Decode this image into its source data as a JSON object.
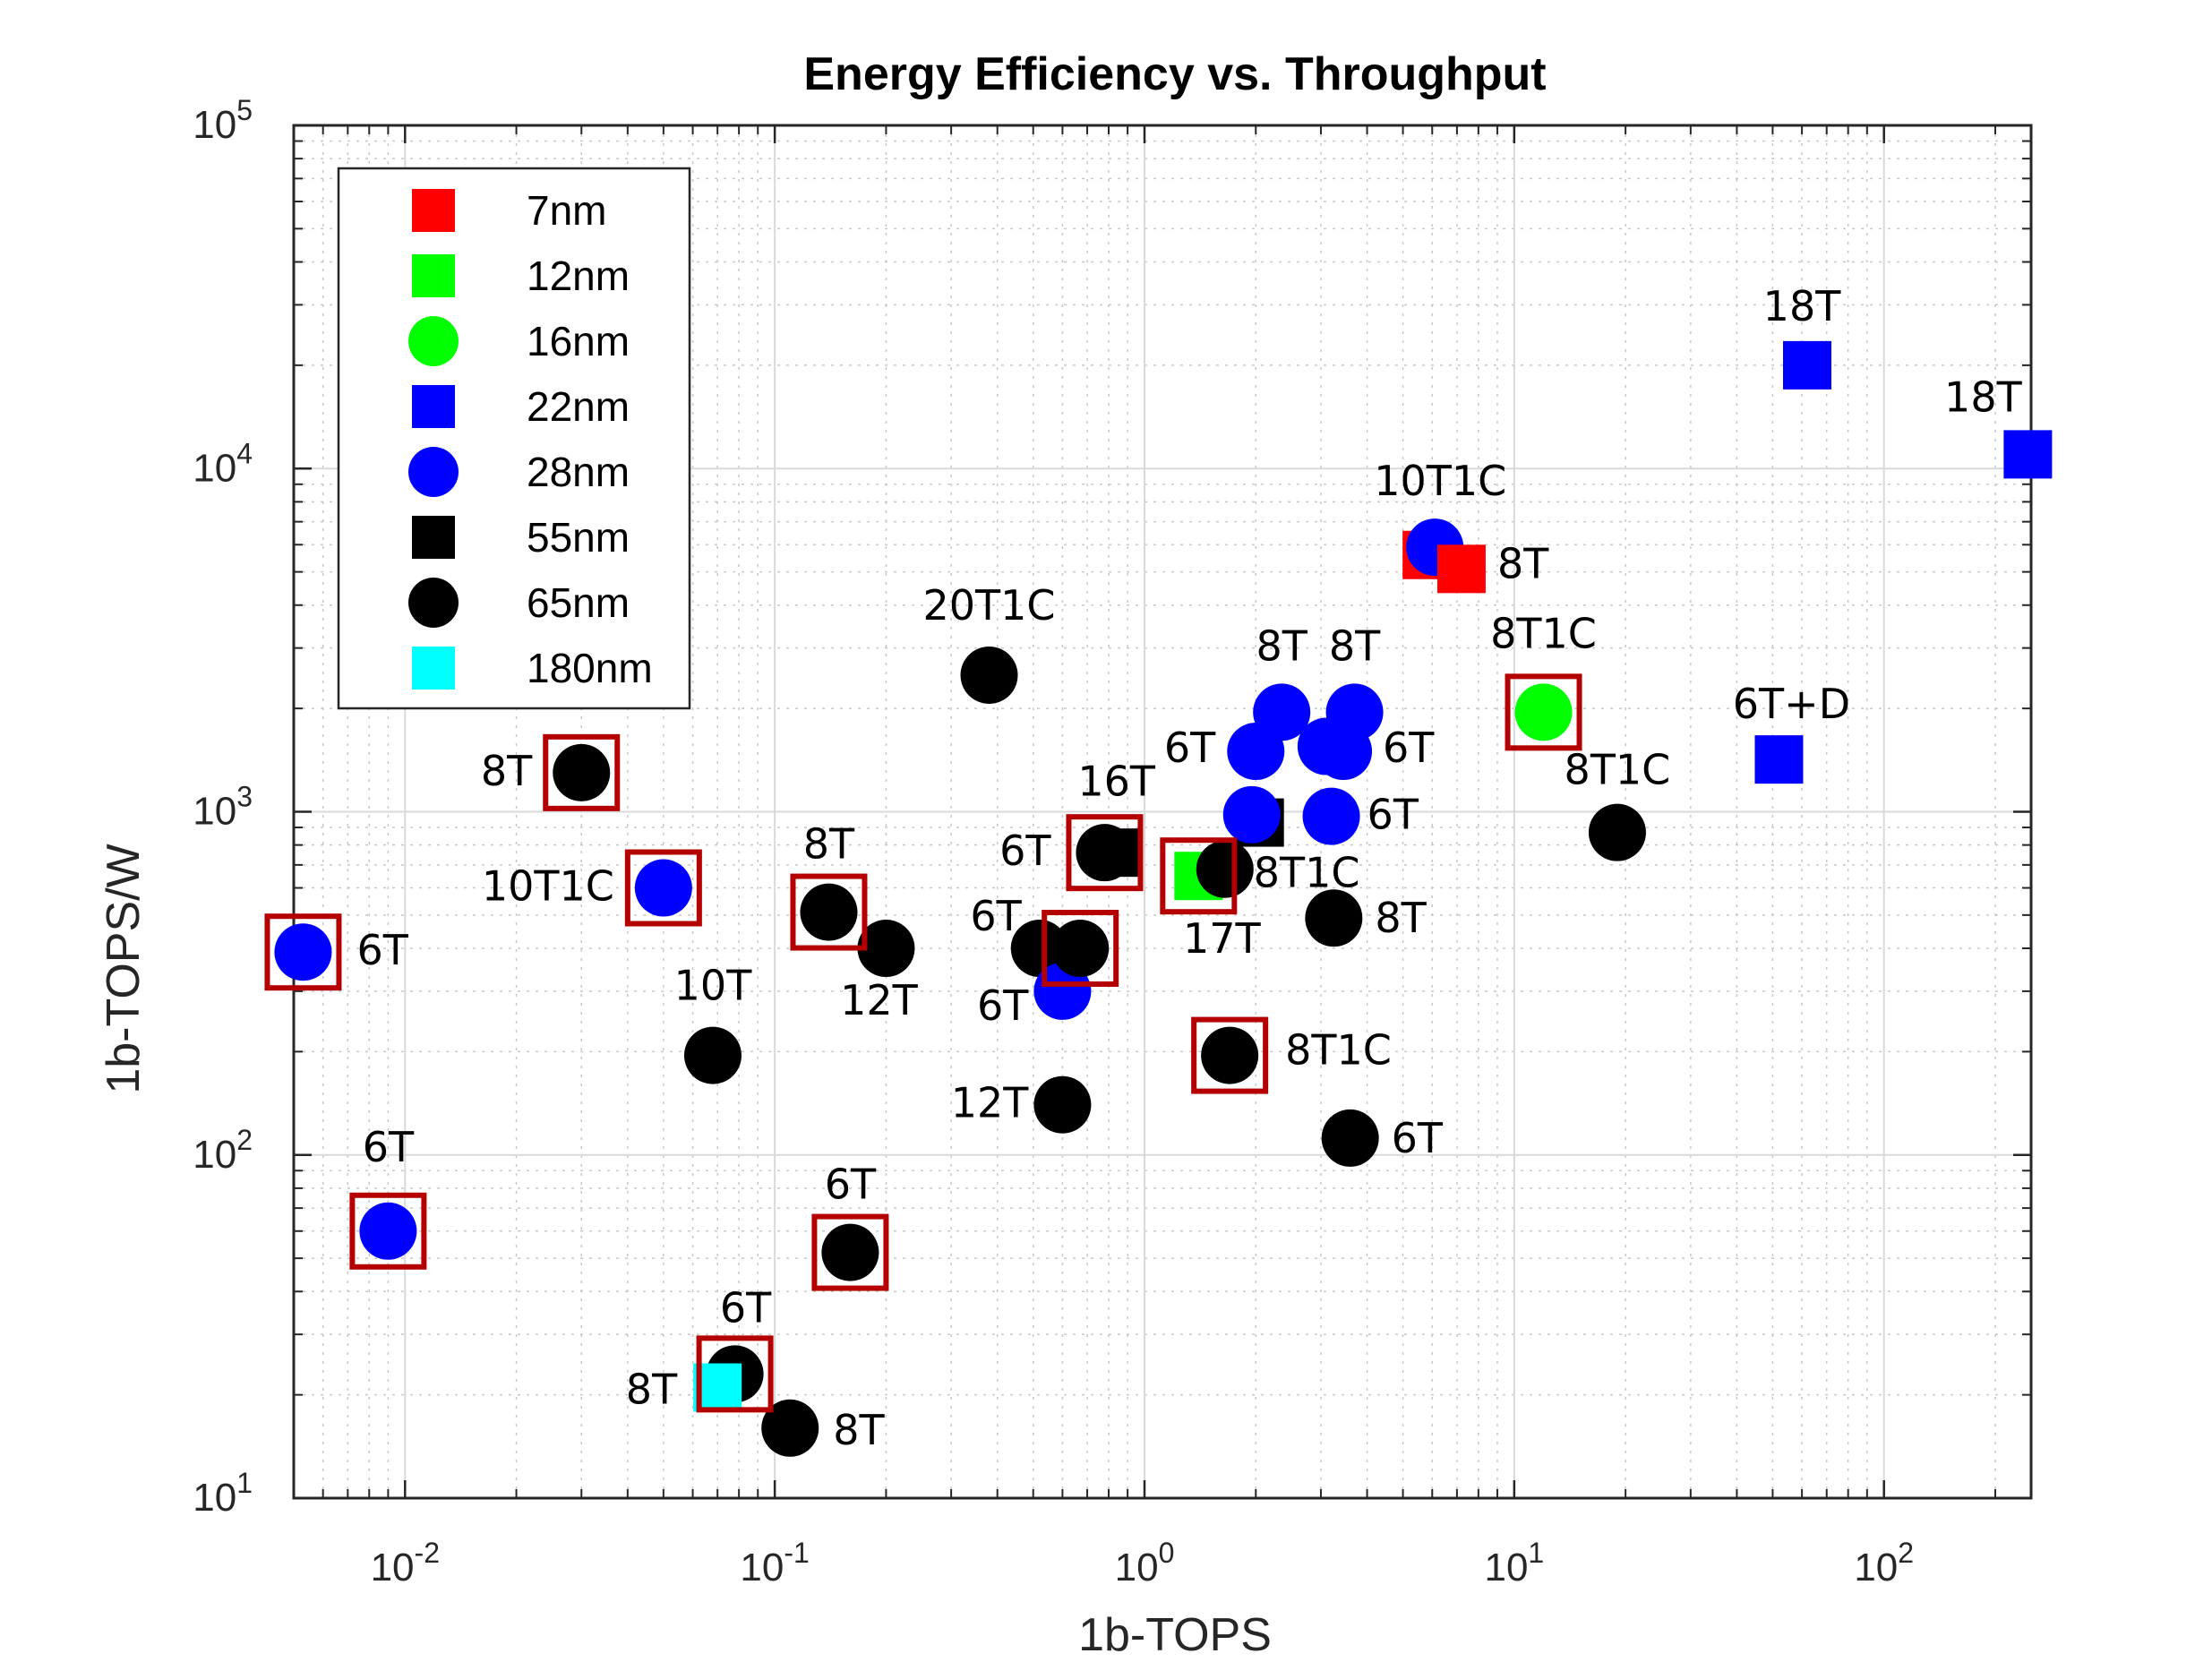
{
  "chart_data": {
    "type": "scatter",
    "title": "Energy Efficiency vs. Throughput",
    "xlabel": "1b-TOPS",
    "ylabel": "1b-TOPS/W",
    "xscale": "log",
    "yscale": "log",
    "xlim": [
      0.005,
      250
    ],
    "ylim": [
      10,
      100000
    ],
    "grid": true,
    "minor_grid": true,
    "legend_position": "top-left",
    "x_ticks": [
      {
        "value": 0.01,
        "base": "10",
        "exp": "-2"
      },
      {
        "value": 0.1,
        "base": "10",
        "exp": "-1"
      },
      {
        "value": 1,
        "base": "10",
        "exp": "0"
      },
      {
        "value": 10,
        "base": "10",
        "exp": "1"
      },
      {
        "value": 100,
        "base": "10",
        "exp": "2"
      }
    ],
    "y_ticks": [
      {
        "value": 10,
        "base": "10",
        "exp": "1"
      },
      {
        "value": 100,
        "base": "10",
        "exp": "2"
      },
      {
        "value": 1000,
        "base": "10",
        "exp": "3"
      },
      {
        "value": 10000,
        "base": "10",
        "exp": "4"
      },
      {
        "value": 100000,
        "base": "10",
        "exp": "5"
      }
    ],
    "legend": [
      {
        "label": "7nm",
        "marker": "square",
        "color": "#ff0000"
      },
      {
        "label": "12nm",
        "marker": "square",
        "color": "#00ff00"
      },
      {
        "label": "16nm",
        "marker": "circle",
        "color": "#00ff00"
      },
      {
        "label": "22nm",
        "marker": "square",
        "color": "#0000ff"
      },
      {
        "label": "28nm",
        "marker": "circle",
        "color": "#0000ff"
      },
      {
        "label": "55nm",
        "marker": "square",
        "color": "#000000"
      },
      {
        "label": "65nm",
        "marker": "circle",
        "color": "#000000"
      },
      {
        "label": "180nm",
        "marker": "square",
        "color": "#00ffff"
      }
    ],
    "highlight_color": "#b40000",
    "points": [
      {
        "x": 0.0053,
        "y": 390,
        "node": "28nm",
        "label": "6T",
        "highlight": true
      },
      {
        "x": 0.009,
        "y": 60,
        "node": "28nm",
        "label": "6T",
        "highlight": true
      },
      {
        "x": 0.03,
        "y": 1300,
        "node": "65nm",
        "label": "8T",
        "highlight": true
      },
      {
        "x": 0.05,
        "y": 600,
        "node": "28nm",
        "label": "10T1C",
        "highlight": true
      },
      {
        "x": 0.068,
        "y": 195,
        "node": "65nm",
        "label": "10T",
        "highlight": false
      },
      {
        "x": 0.078,
        "y": 23,
        "node": "65nm",
        "label": "6T",
        "highlight": true
      },
      {
        "x": 0.07,
        "y": 21,
        "node": "180nm",
        "label": "8T",
        "highlight": false
      },
      {
        "x": 0.11,
        "y": 16,
        "node": "65nm",
        "label": "8T",
        "highlight": false
      },
      {
        "x": 0.14,
        "y": 510,
        "node": "65nm",
        "label": "8T",
        "highlight": true
      },
      {
        "x": 0.16,
        "y": 52,
        "node": "65nm",
        "label": "6T",
        "highlight": true
      },
      {
        "x": 0.2,
        "y": 400,
        "node": "65nm",
        "label": "12T",
        "highlight": false
      },
      {
        "x": 0.38,
        "y": 2500,
        "node": "65nm",
        "label": "20T1C",
        "highlight": false
      },
      {
        "x": 0.52,
        "y": 400,
        "node": "65nm",
        "label": "6T",
        "highlight": false
      },
      {
        "x": 0.6,
        "y": 140,
        "node": "65nm",
        "label": "12T",
        "highlight": false
      },
      {
        "x": 0.6,
        "y": 300,
        "node": "28nm",
        "label": "6T",
        "highlight": false
      },
      {
        "x": 0.67,
        "y": 400,
        "node": "65nm",
        "label": "",
        "highlight": true
      },
      {
        "x": 0.85,
        "y": 760,
        "node": "55nm",
        "label": "",
        "highlight": false
      },
      {
        "x": 0.78,
        "y": 760,
        "node": "65nm",
        "label": "6T",
        "highlight": true
      },
      {
        "x": 1.4,
        "y": 650,
        "node": "12nm",
        "label": "17T",
        "highlight": true
      },
      {
        "x": 1.65,
        "y": 680,
        "node": "65nm",
        "label": "8T1C",
        "highlight": false
      },
      {
        "x": 2.05,
        "y": 930,
        "node": "55nm",
        "label": "16T",
        "highlight": false
      },
      {
        "x": 1.7,
        "y": 195,
        "node": "65nm",
        "label": "8T1C",
        "highlight": true
      },
      {
        "x": 1.95,
        "y": 980,
        "node": "28nm",
        "label": "",
        "highlight": false
      },
      {
        "x": 2.0,
        "y": 1500,
        "node": "28nm",
        "label": "6T",
        "highlight": false
      },
      {
        "x": 2.35,
        "y": 1950,
        "node": "28nm",
        "label": "8T",
        "highlight": false
      },
      {
        "x": 3.1,
        "y": 1550,
        "node": "28nm",
        "label": "",
        "highlight": false
      },
      {
        "x": 3.2,
        "y": 970,
        "node": "28nm",
        "label": "6T",
        "highlight": false
      },
      {
        "x": 3.25,
        "y": 490,
        "node": "65nm",
        "label": "8T",
        "highlight": false
      },
      {
        "x": 3.45,
        "y": 1500,
        "node": "28nm",
        "label": "6T",
        "highlight": false
      },
      {
        "x": 3.7,
        "y": 1950,
        "node": "28nm",
        "label": "8T",
        "highlight": false
      },
      {
        "x": 3.6,
        "y": 112,
        "node": "65nm",
        "label": "6T",
        "highlight": false
      },
      {
        "x": 5.8,
        "y": 5600,
        "node": "7nm",
        "label": "",
        "highlight": false
      },
      {
        "x": 6.1,
        "y": 5900,
        "node": "28nm",
        "label": "10T1C",
        "highlight": false
      },
      {
        "x": 7.2,
        "y": 5100,
        "node": "7nm",
        "label": "8T",
        "highlight": false
      },
      {
        "x": 12,
        "y": 1950,
        "node": "16nm",
        "label": "8T1C",
        "highlight": true
      },
      {
        "x": 19,
        "y": 870,
        "node": "65nm",
        "label": "8T1C",
        "highlight": false
      },
      {
        "x": 52,
        "y": 1420,
        "node": "22nm",
        "label": "6T+D",
        "highlight": false
      },
      {
        "x": 62,
        "y": 20000,
        "node": "22nm",
        "label": "18T",
        "highlight": false
      },
      {
        "x": 245,
        "y": 11000,
        "node": "22nm",
        "label": "18T",
        "highlight": false
      }
    ]
  }
}
